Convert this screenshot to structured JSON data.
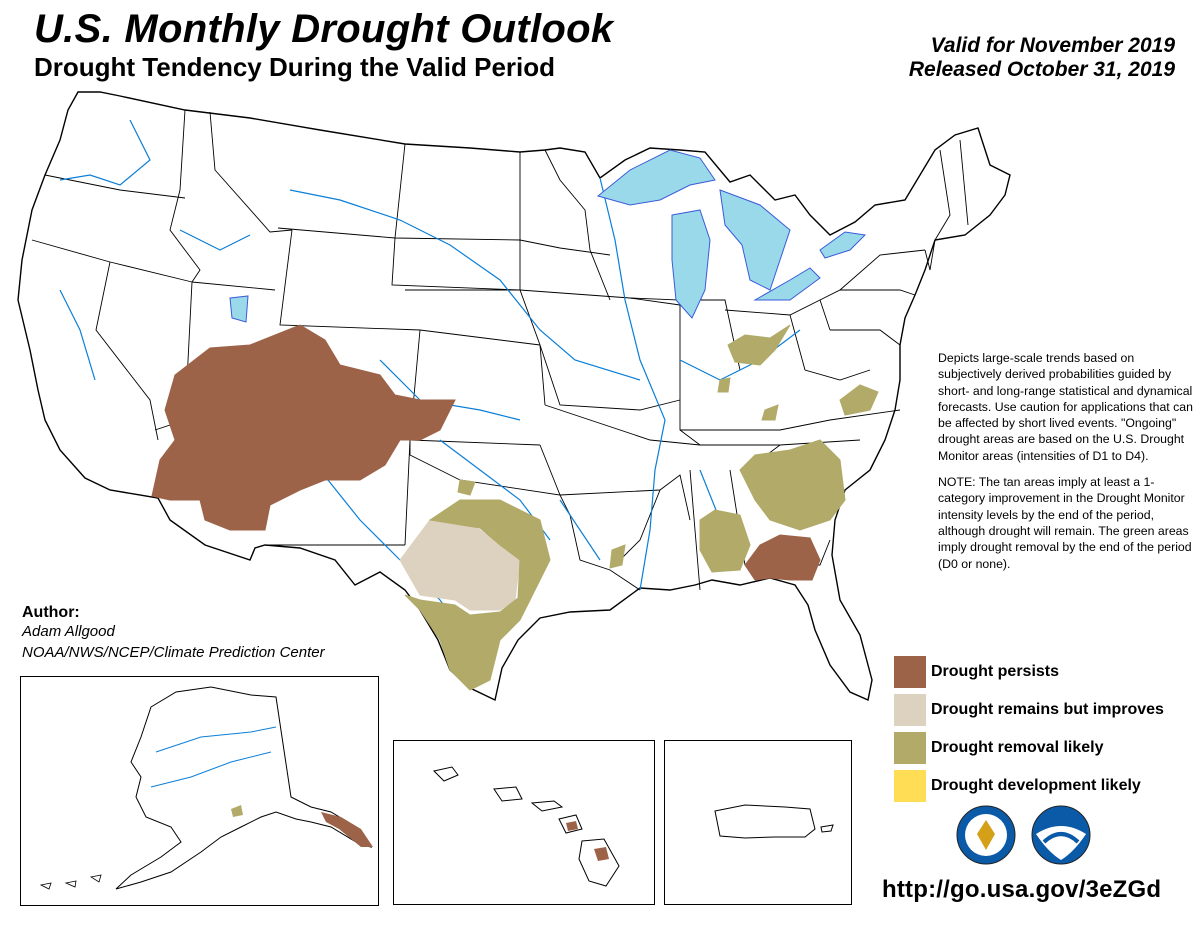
{
  "header": {
    "title": "U.S. Monthly Drought Outlook",
    "subtitle": "Drought Tendency During the Valid Period",
    "valid": "Valid for November 2019",
    "released": "Released October 31, 2019"
  },
  "description": {
    "paragraph1": "Depicts large-scale trends based on subjectively derived probabilities guided by short- and long-range statistical and dynamical forecasts. Use caution for applications that can be affected by short lived events. \"Ongoing\" drought areas are based on the U.S. Drought Monitor areas (intensities of D1 to D4).",
    "paragraph2": "NOTE: The tan areas imply at least a 1-category improvement in the Drought Monitor intensity levels by the end of the period, although drought will remain. The green areas imply drought removal by the end of the period (D0 or none)."
  },
  "legend": [
    {
      "label": "Drought persists",
      "color": "#9c6349"
    },
    {
      "label": "Drought remains but improves",
      "color": "#ddd2bf"
    },
    {
      "label": "Drought removal likely",
      "color": "#b1aa69"
    },
    {
      "label": "Drought development likely",
      "color": "#ffdd55"
    }
  ],
  "author": {
    "label": "Author:",
    "name": "Adam Allgood",
    "org": "NOAA/NWS/NCEP/Climate Prediction Center"
  },
  "url": "http://go.usa.gov/3eZGd",
  "logos": {
    "nws": {
      "name": "nws-logo-icon",
      "color": "#0a5aa8"
    },
    "noaa": {
      "name": "noaa-logo-icon",
      "color": "#0a5aa8"
    }
  },
  "map_colors": {
    "water": "#99d9ea",
    "rivers": "#0b7fd8",
    "borders": "#000000"
  }
}
